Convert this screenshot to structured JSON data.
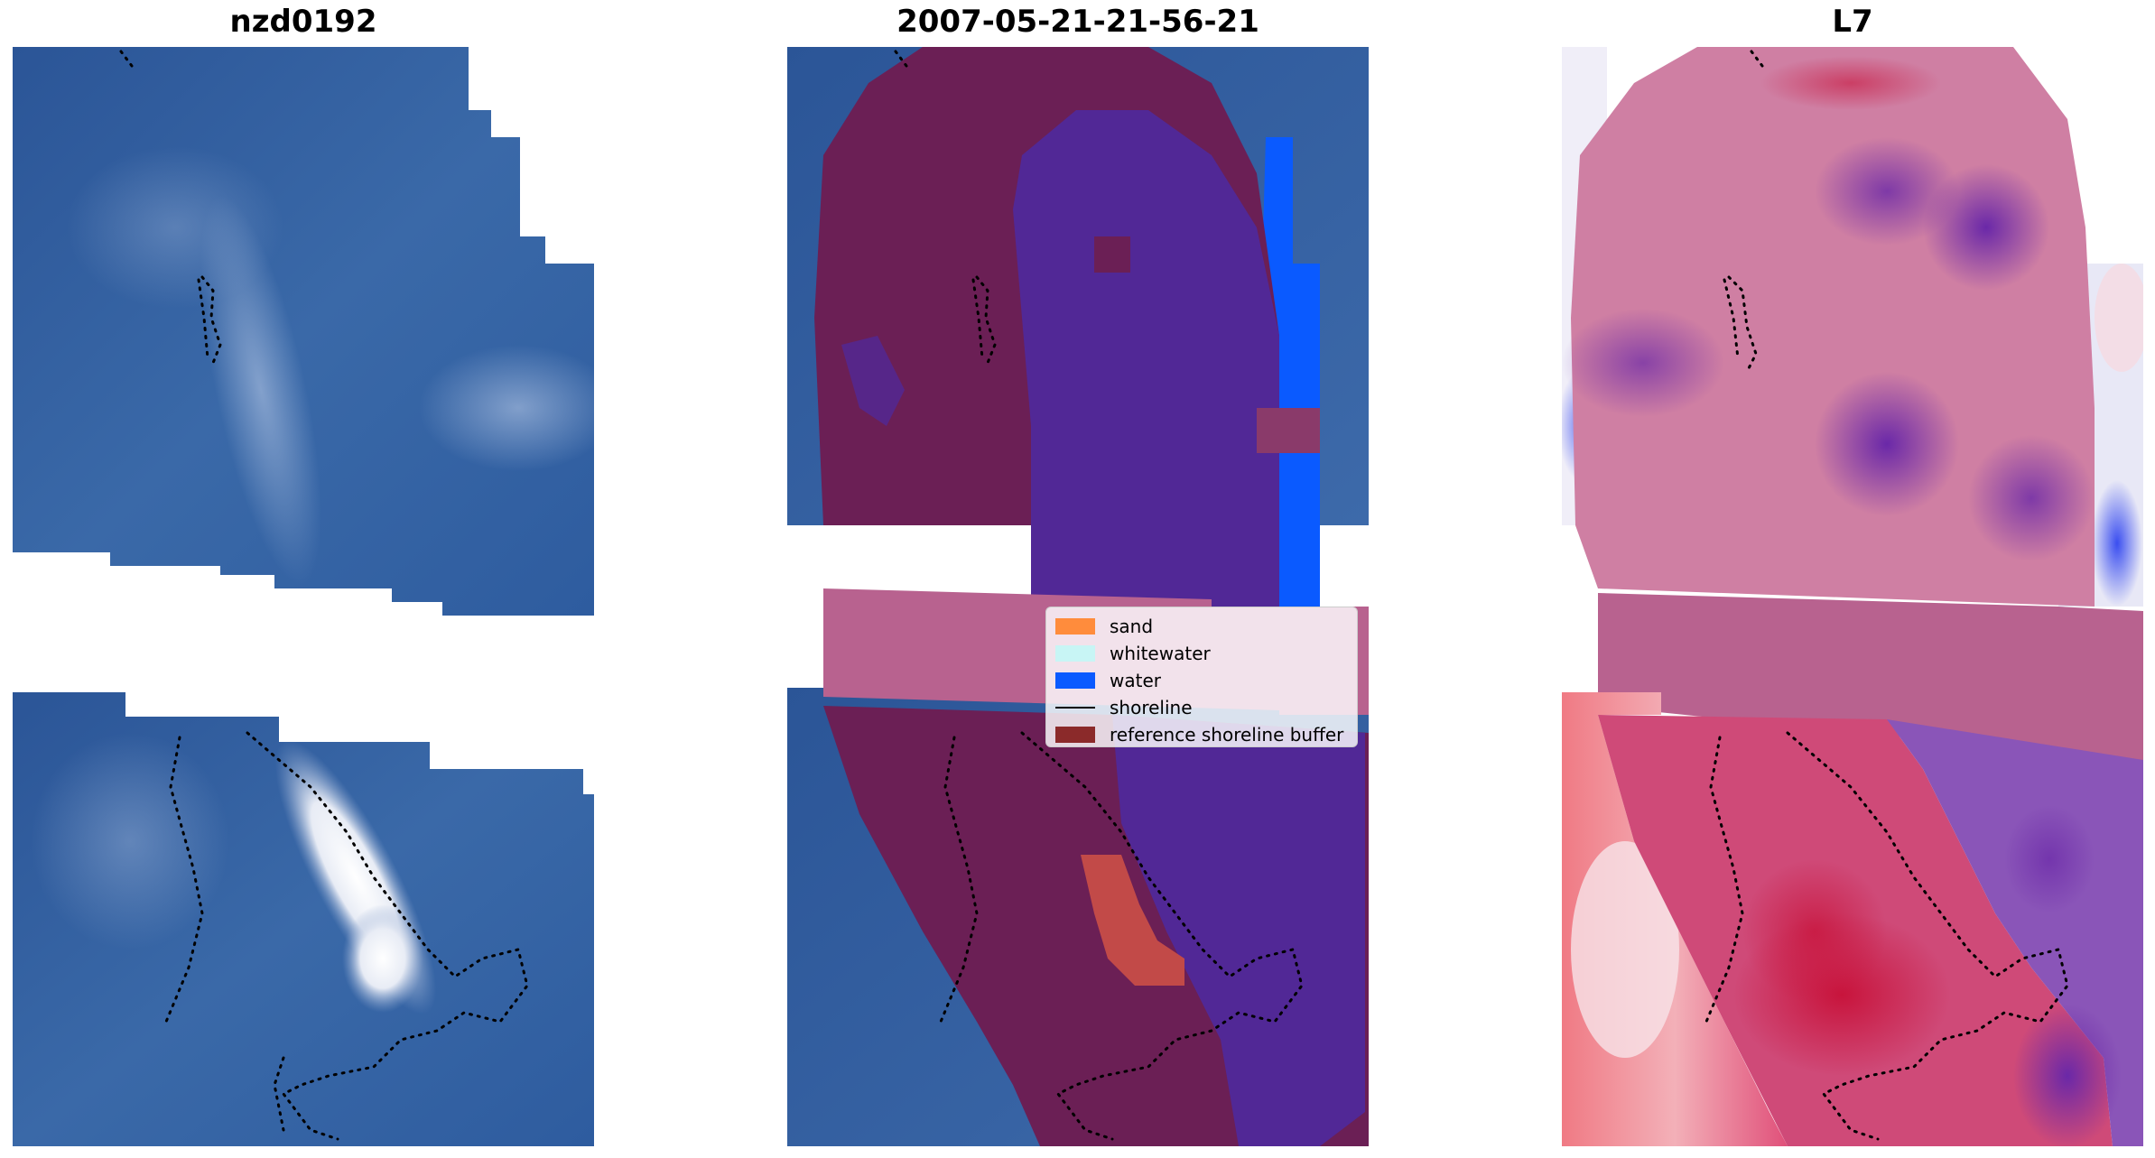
{
  "figure": {
    "panels": [
      {
        "title": "nzd0192",
        "kind": "rgb"
      },
      {
        "title": "2007-05-21-21-56-21",
        "kind": "classified"
      },
      {
        "title": "L7",
        "kind": "mndwi"
      }
    ]
  },
  "legend": {
    "items": [
      {
        "label": "sand",
        "color": "#ff8c3c",
        "style": "patch"
      },
      {
        "label": "whitewater",
        "color": "#c8f5f5",
        "style": "patch"
      },
      {
        "label": "water",
        "color": "#0a5aff",
        "style": "patch"
      },
      {
        "label": "shoreline",
        "color": "#000000",
        "style": "line"
      },
      {
        "label": "reference shoreline buffer",
        "color": "#8b2a2a",
        "style": "patch"
      }
    ]
  },
  "colors": {
    "ocean_blue": "#2f5a9b",
    "buffer_purple": "#6e1f55",
    "water_class": "#512896",
    "bright_water": "#0a5aff",
    "gap_band": "#b8628f",
    "sand_class": "#c24a48",
    "index_pink": "#cf7fa3",
    "index_red": "#c8143c",
    "index_purple": "#7c3aa8"
  }
}
